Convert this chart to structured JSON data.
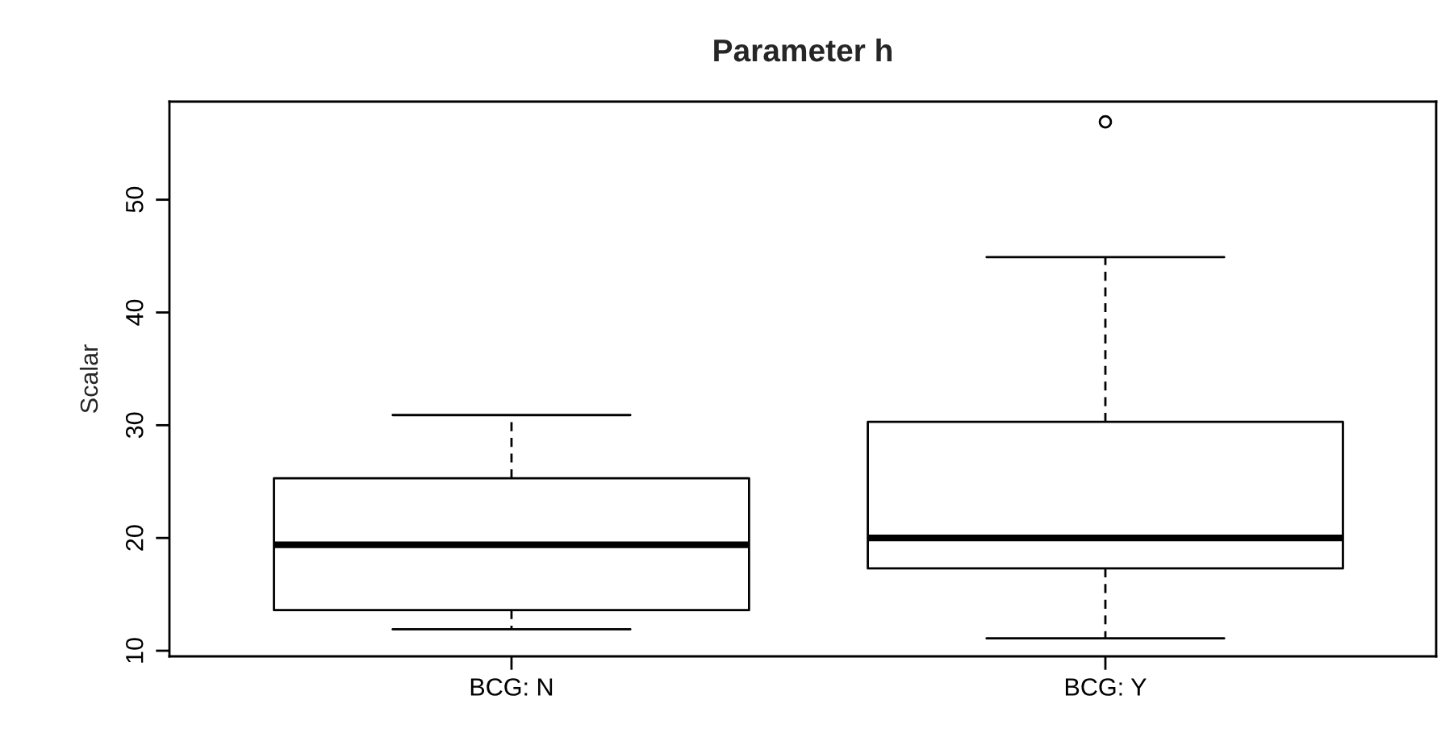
{
  "chart_data": {
    "type": "box",
    "title": "Parameter h",
    "ylabel": "Scalar",
    "categories": [
      "BCG: N",
      "BCG: Y"
    ],
    "boxes": [
      {
        "low": 11.9,
        "q1": 13.6,
        "median": 19.4,
        "q3": 25.3,
        "high": 30.9
      },
      {
        "low": 11.1,
        "q1": 17.3,
        "median": 20.0,
        "q3": 30.3,
        "high": 44.9,
        "outliers": [
          56.9
        ]
      }
    ],
    "ylim": [
      9.5,
      58.7
    ],
    "yticks": [
      10,
      20,
      30,
      40,
      50
    ],
    "grid": false,
    "legend": false
  }
}
